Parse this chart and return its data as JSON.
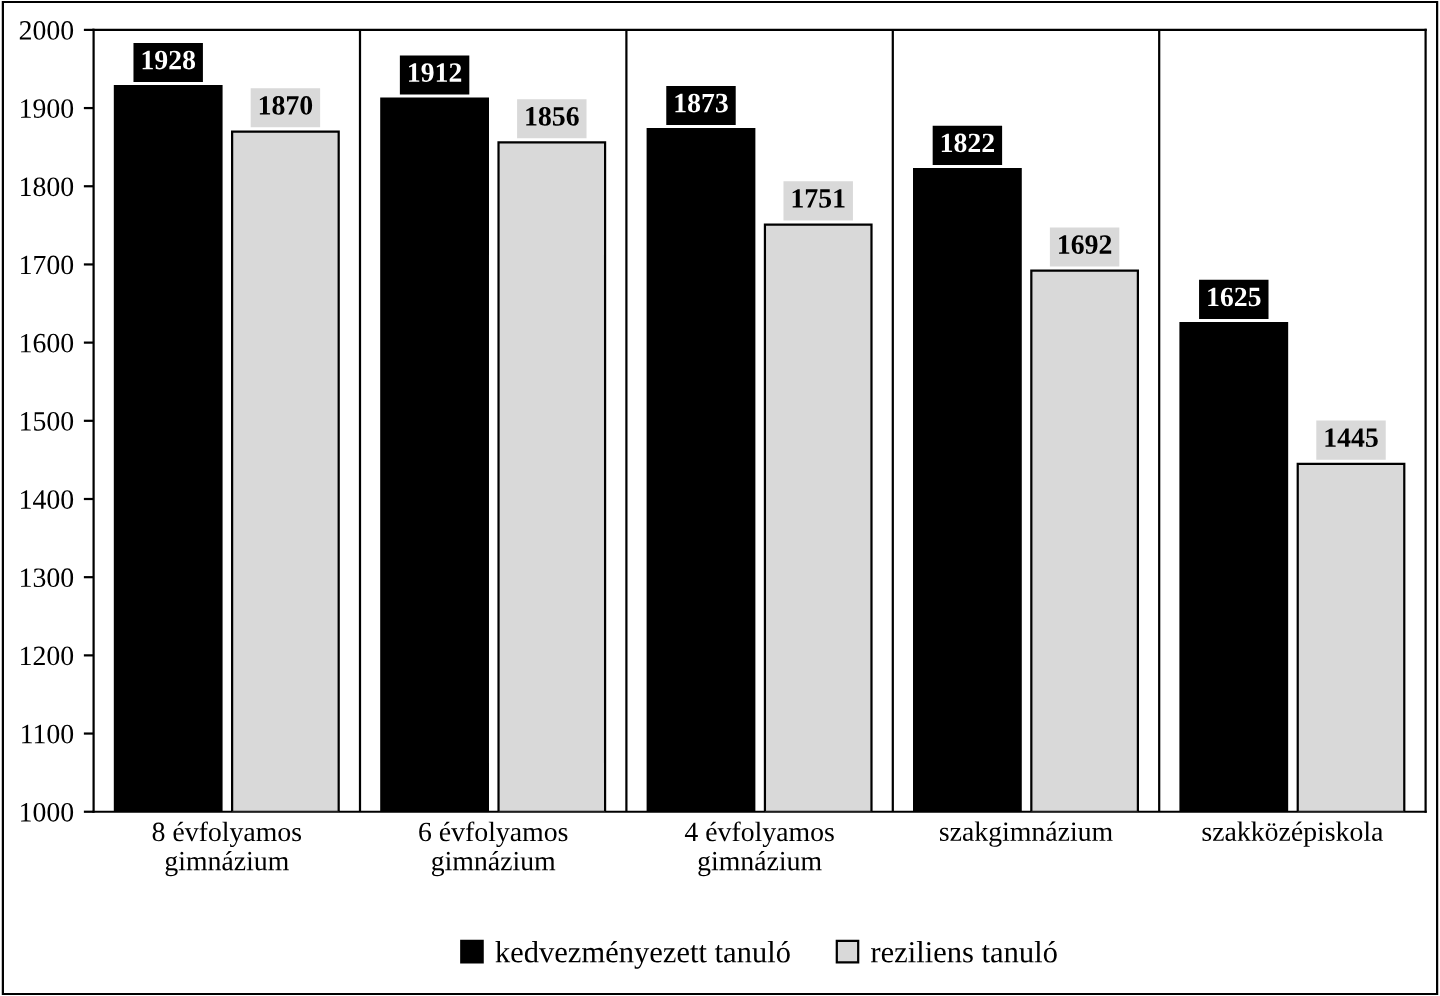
{
  "chart_data": {
    "type": "bar",
    "categories": [
      "8 évfolyamos\ngimnázium",
      "6 évfolyamos\ngimnázium",
      "4 évfolyamos\ngimnázium",
      "szakgimnázium",
      "szakközépiskola"
    ],
    "series": [
      {
        "name": "kedvezményezett tanuló",
        "color": "#000000",
        "values": [
          1928,
          1912,
          1873,
          1822,
          1625
        ]
      },
      {
        "name": "reziliens tanuló",
        "color": "#d9d9d9",
        "values": [
          1870,
          1856,
          1751,
          1692,
          1445
        ]
      }
    ],
    "ylim": [
      1000,
      2000
    ],
    "yticks": [
      1000,
      1100,
      1200,
      1300,
      1400,
      1500,
      1600,
      1700,
      1800,
      1900,
      2000
    ],
    "grid": "x",
    "legend": "bottom",
    "data_labels": true
  }
}
